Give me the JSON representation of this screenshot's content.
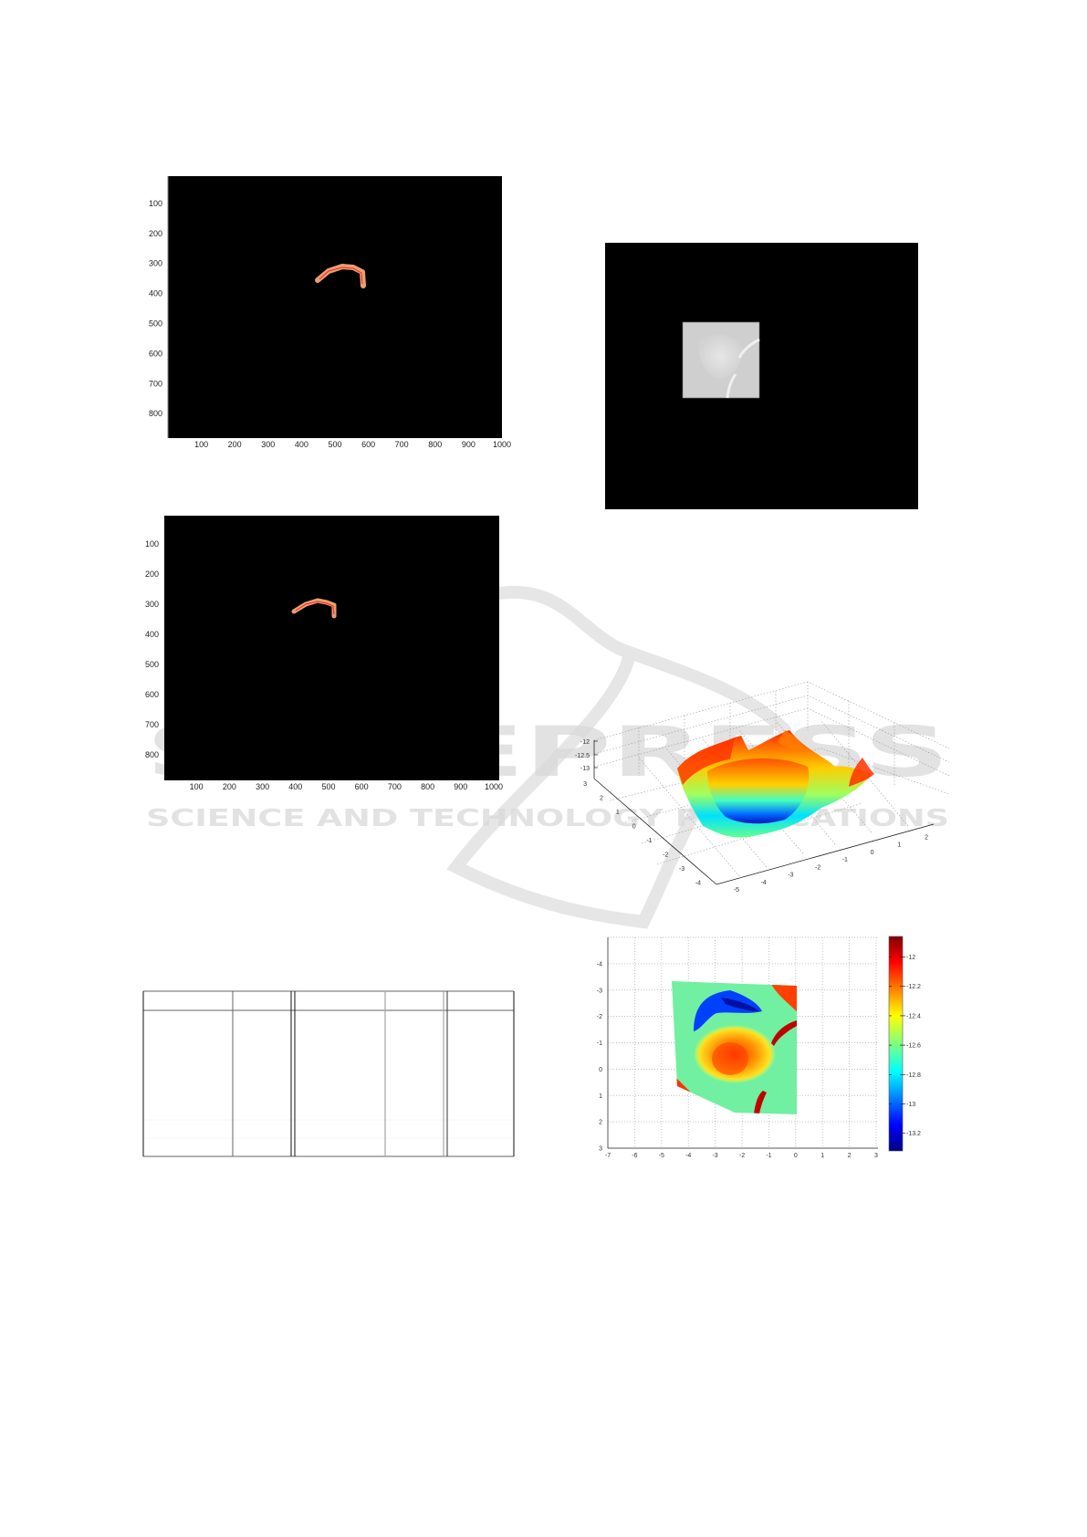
{
  "watermark": {
    "brand": "SCITEPRESS",
    "tagline": "SCIENCE AND TECHNOLOGY PUBLICATIONS"
  },
  "colors": {
    "figure_background": "#000000",
    "segment_fill": "#e8a070",
    "segment_centerline": "#ff2020",
    "watermark": "#d9d9d9",
    "table_rule": "#666666"
  },
  "chart_data": [
    {
      "id": "segmentation-1",
      "type": "image",
      "xticks": [
        100,
        200,
        300,
        400,
        500,
        600,
        700,
        800,
        900,
        1000
      ],
      "yticks": [
        100,
        200,
        300,
        400,
        500,
        600,
        700,
        800
      ],
      "xlim": [
        0,
        1000
      ],
      "ylim": [
        0,
        870
      ],
      "yreversed": true
    },
    {
      "id": "segmentation-2",
      "type": "image",
      "xticks": [
        100,
        200,
        300,
        400,
        500,
        600,
        700,
        800,
        900,
        1000
      ],
      "yticks": [
        100,
        200,
        300,
        400,
        500,
        600,
        700,
        800
      ],
      "xlim": [
        0,
        1000
      ],
      "ylim": [
        0,
        870
      ],
      "yreversed": true
    },
    {
      "id": "grayscale-crop",
      "type": "image",
      "colormap": "gray"
    },
    {
      "id": "surface-3d",
      "type": "surface",
      "colormap": "jet",
      "zticks": [
        "-12",
        "-12.5",
        "-13"
      ],
      "yticks": [
        "3",
        "2",
        "1",
        "0",
        "-1",
        "-2",
        "-3",
        "-4"
      ],
      "xticks": [
        "-5",
        "-4",
        "-3",
        "-2",
        "-1",
        "0",
        "1",
        "2"
      ],
      "grid": true
    },
    {
      "id": "depth-map",
      "type": "heatmap",
      "colormap": "jet",
      "xticks": [
        "-7",
        "-6",
        "-5",
        "-4",
        "-3",
        "-2",
        "-1",
        "0",
        "1",
        "2",
        "3"
      ],
      "yticks": [
        "-4",
        "-3",
        "-2",
        "-1",
        "0",
        "1",
        "2",
        "3"
      ],
      "xlim": [
        -7,
        3
      ],
      "ylim": [
        -5,
        3
      ],
      "yreversed": true,
      "grid": true,
      "colorbar": {
        "ticks": [
          "-12",
          "-12.2",
          "-12.4",
          "-12.6",
          "-12.8",
          "-13",
          "-13.2"
        ],
        "range": [
          -13.32,
          -11.86
        ]
      }
    }
  ],
  "table": {
    "columns": 7,
    "headers": [
      "",
      "",
      "",
      "",
      "",
      "",
      ""
    ],
    "rows": []
  }
}
